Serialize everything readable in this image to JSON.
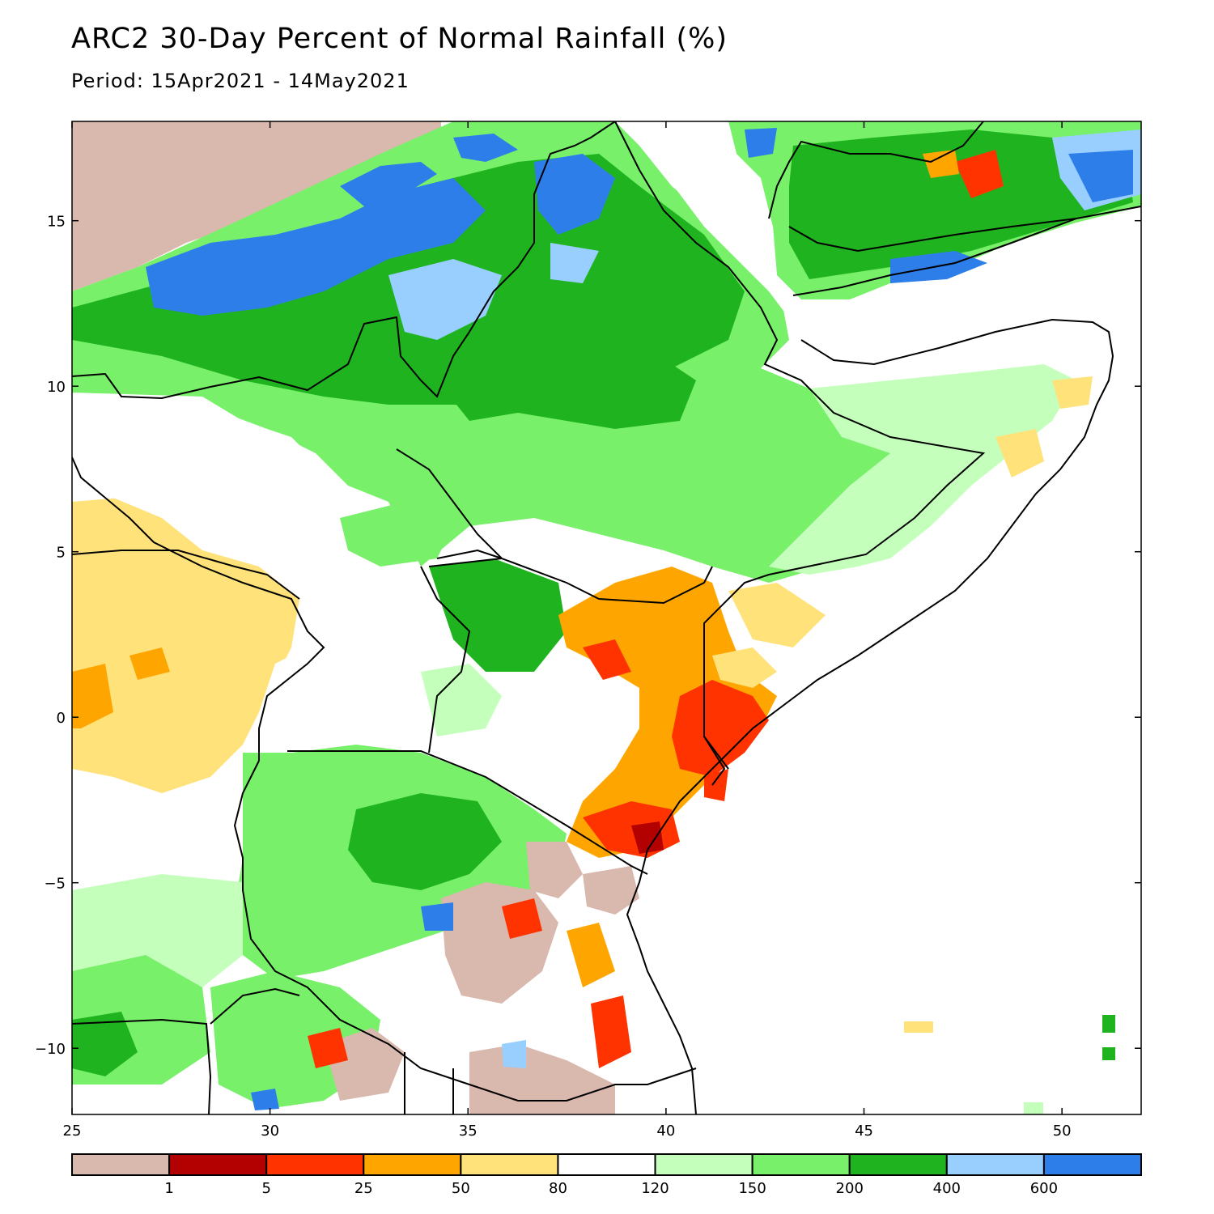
{
  "title": "ARC2 30-Day Percent of Normal Rainfall (%)",
  "subtitle": "Period: 15Apr2021 - 14May2021",
  "map": {
    "lon_range": [
      25,
      52
    ],
    "lat_range": [
      -12,
      18
    ],
    "lon_ticks": [
      {
        "value": 25,
        "label": "25"
      },
      {
        "value": 30,
        "label": "30"
      },
      {
        "value": 35,
        "label": "35"
      },
      {
        "value": 40,
        "label": "40"
      },
      {
        "value": 45,
        "label": "45"
      },
      {
        "value": 50,
        "label": "50"
      }
    ],
    "lat_ticks": [
      {
        "value": 15,
        "label": "15"
      },
      {
        "value": 10,
        "label": "10"
      },
      {
        "value": 5,
        "label": "5"
      },
      {
        "value": 0,
        "label": "0"
      },
      {
        "value": -5,
        "label": "−5"
      },
      {
        "value": -10,
        "label": "−10"
      }
    ]
  },
  "legend": {
    "colors": [
      "#d9b8ad",
      "#b30000",
      "#ff3300",
      "#ffa500",
      "#ffe27a",
      "#ffffff",
      "#c4ffbc",
      "#78f06a",
      "#1fb41f",
      "#98cfff",
      "#2e7eea"
    ],
    "labels": [
      "1",
      "5",
      "25",
      "50",
      "80",
      "120",
      "150",
      "200",
      "400",
      "600"
    ]
  }
}
